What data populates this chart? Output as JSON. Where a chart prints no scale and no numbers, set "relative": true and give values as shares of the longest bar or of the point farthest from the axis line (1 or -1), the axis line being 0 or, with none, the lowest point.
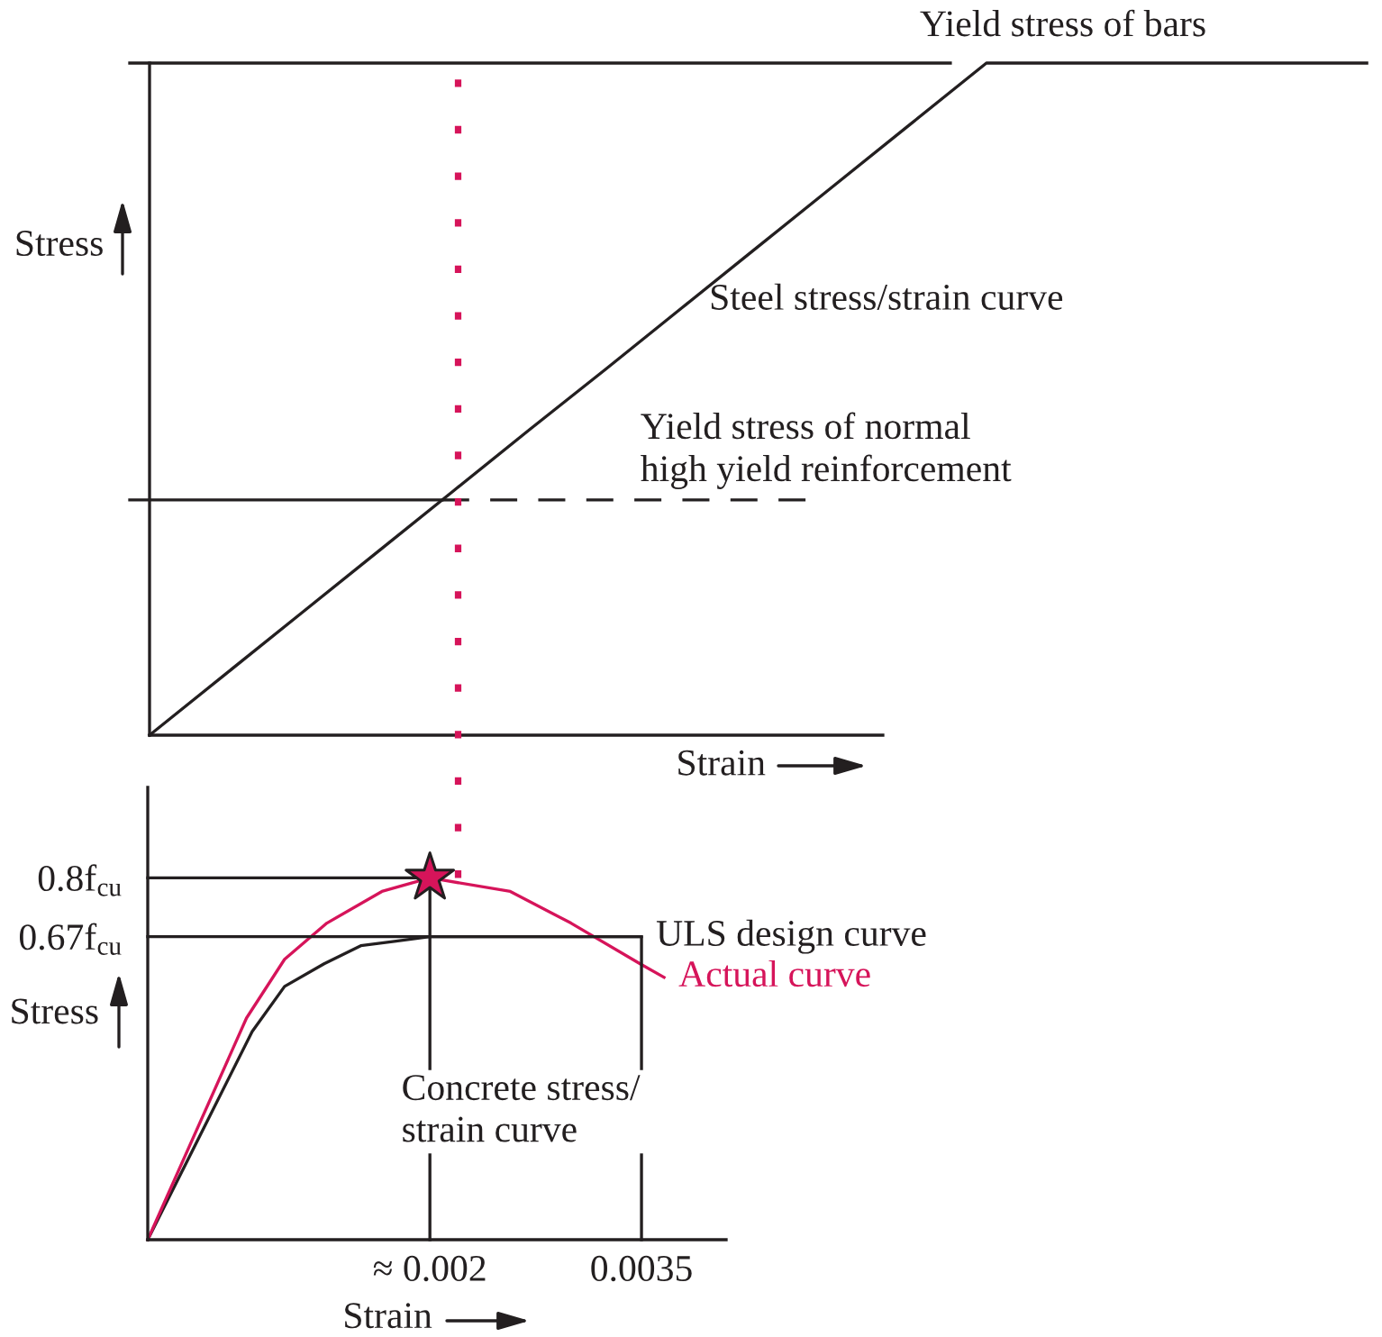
{
  "chart_data": [
    {
      "type": "line",
      "relative": true,
      "xlabel": "Strain",
      "ylabel": "Stress",
      "categories": [
        null,
        null,
        null,
        null,
        null,
        null,
        null,
        null,
        null,
        null,
        null,
        null,
        null,
        null,
        null,
        null,
        null
      ],
      "series": [
        {
          "name": "Steel stress/strain curve",
          "color": "#231f20",
          "values": [
            0,
            0.091,
            0.182,
            0.273,
            0.364,
            0.455,
            0.545,
            0.636,
            0.727,
            0.818,
            0.909,
            1,
            1,
            1,
            1,
            1,
            1
          ]
        }
      ],
      "ref_lines": [
        {
          "axis": "y",
          "value": 1,
          "label": "Yield stress of bars",
          "color": "#231f20"
        },
        {
          "axis": "y",
          "value": 0.35,
          "color": "#231f20",
          "line_style": "solid"
        },
        {
          "axis": "y",
          "value": 0.35,
          "label": "Yield stress of normal\nhigh yield reinforcement",
          "color": "#231f20",
          "line_style": "dashed"
        }
      ]
    },
    {
      "type": "line",
      "xlabel": "Strain",
      "ylabel": "Stress",
      "xlim": [
        0,
        0.0041
      ],
      "ylim": [
        0,
        1
      ],
      "xticks": [
        {
          "value": 0.002,
          "label": "≈ 0.002"
        },
        {
          "value": 0.0035,
          "label": "0.0035"
        }
      ],
      "yticks": [
        {
          "value": 0.67,
          "label": "0.67f$_{cu}$"
        },
        {
          "value": 0.8,
          "label": "0.8f$_{cu}$"
        }
      ],
      "series": [
        {
          "name": "ULS design curve",
          "color": "#231f20",
          "x": [
            0,
            0.00074,
            0.00097,
            0.00125,
            0.00151,
            0.00176,
            0.002,
            0.0035
          ],
          "values": [
            0,
            0.46,
            0.56,
            0.61,
            0.65,
            0.66,
            0.67,
            0.67
          ]
        },
        {
          "name": "Actual curve",
          "color": "#d6145a",
          "x": [
            0,
            0.0007,
            0.00097,
            0.00127,
            0.00166,
            0.002,
            0.00257,
            0.003,
            0.00349,
            0.00366
          ],
          "values": [
            0,
            0.49,
            0.62,
            0.7,
            0.77,
            0.8,
            0.77,
            0.7,
            0.61,
            0.58
          ]
        },
        {
          "color": "#231f20",
          "x": [
            0,
            0.002,
            0.002
          ],
          "values": [
            0.8,
            0.8,
            0
          ]
        },
        {
          "color": "#231f20",
          "x": [
            0,
            0.0035,
            0.0035
          ],
          "values": [
            0.67,
            0.67,
            0
          ]
        },
        {
          "type": "scatter",
          "marker": "star",
          "color": "#d6145a",
          "x": [
            0.002
          ],
          "values": [
            0.8
          ]
        }
      ],
      "ref_lines": [
        {
          "axis": "x",
          "value": 0.0022,
          "color": "#d6145a",
          "line_style": "dotted"
        }
      ],
      "annotations": [
        "Concrete stress/\nstrain curve"
      ]
    }
  ]
}
